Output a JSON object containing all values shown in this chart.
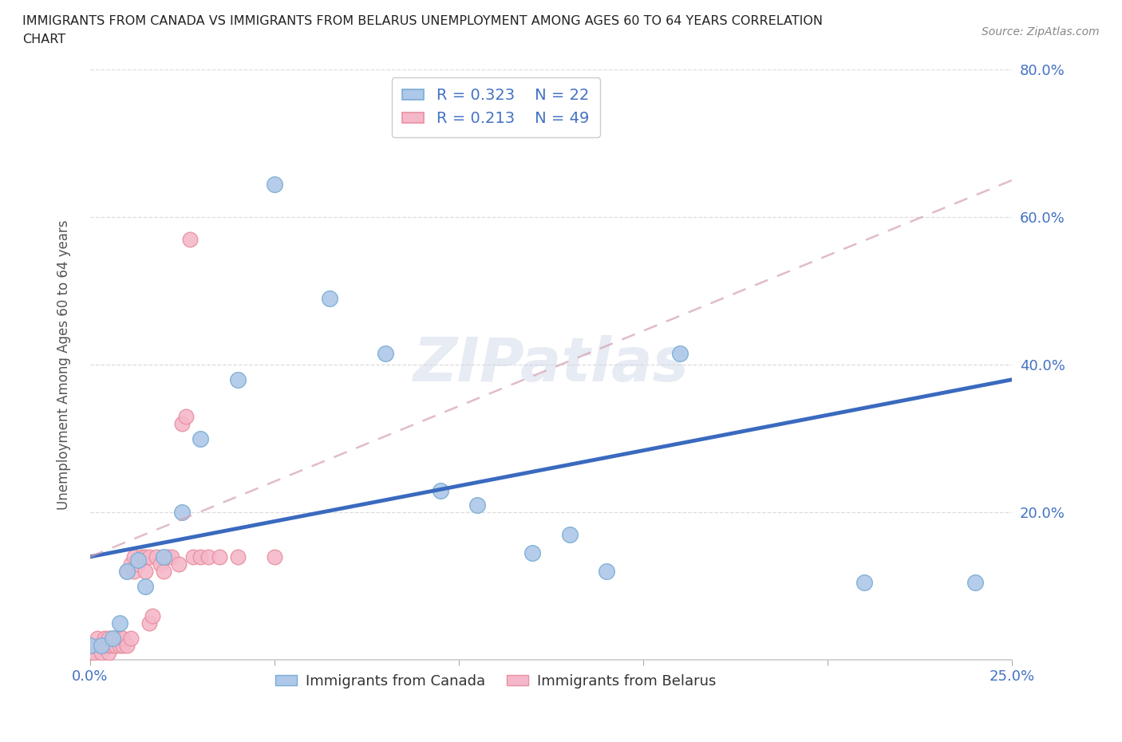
{
  "title_line1": "IMMIGRANTS FROM CANADA VS IMMIGRANTS FROM BELARUS UNEMPLOYMENT AMONG AGES 60 TO 64 YEARS CORRELATION",
  "title_line2": "CHART",
  "source": "Source: ZipAtlas.com",
  "ylabel": "Unemployment Among Ages 60 to 64 years",
  "xmin": 0.0,
  "xmax": 0.25,
  "ymin": 0.0,
  "ymax": 0.8,
  "canada_color": "#adc8e8",
  "canada_edge_color": "#7aadd4",
  "belarus_color": "#f5b8ca",
  "belarus_edge_color": "#e8909f",
  "canada_line_color": "#3a6abf",
  "belarus_line_color": "#e0a0b0",
  "legend_text_color": "#4472c4",
  "watermark": "ZIPatlas",
  "grid_color": "#dddddd",
  "background_color": "#ffffff",
  "canada_x": [
    0.0,
    0.003,
    0.006,
    0.008,
    0.01,
    0.013,
    0.015,
    0.02,
    0.025,
    0.03,
    0.04,
    0.05,
    0.065,
    0.08,
    0.095,
    0.105,
    0.12,
    0.13,
    0.14,
    0.16,
    0.21,
    0.24
  ],
  "canada_y": [
    0.02,
    0.02,
    0.03,
    0.05,
    0.12,
    0.135,
    0.1,
    0.14,
    0.2,
    0.3,
    0.38,
    0.645,
    0.49,
    0.415,
    0.23,
    0.21,
    0.145,
    0.17,
    0.12,
    0.415,
    0.105,
    0.105
  ],
  "belarus_x": [
    0.0,
    0.0,
    0.001,
    0.001,
    0.002,
    0.002,
    0.003,
    0.003,
    0.004,
    0.004,
    0.005,
    0.005,
    0.005,
    0.006,
    0.006,
    0.007,
    0.007,
    0.008,
    0.008,
    0.009,
    0.009,
    0.01,
    0.01,
    0.011,
    0.011,
    0.012,
    0.012,
    0.013,
    0.014,
    0.015,
    0.015,
    0.016,
    0.016,
    0.017,
    0.018,
    0.019,
    0.02,
    0.021,
    0.022,
    0.024,
    0.025,
    0.026,
    0.027,
    0.028,
    0.03,
    0.032,
    0.035,
    0.04,
    0.05
  ],
  "belarus_y": [
    0.01,
    0.02,
    0.01,
    0.02,
    0.02,
    0.03,
    0.01,
    0.02,
    0.02,
    0.03,
    0.01,
    0.02,
    0.03,
    0.02,
    0.03,
    0.02,
    0.03,
    0.02,
    0.03,
    0.02,
    0.03,
    0.02,
    0.12,
    0.13,
    0.03,
    0.12,
    0.14,
    0.13,
    0.14,
    0.12,
    0.14,
    0.05,
    0.14,
    0.06,
    0.14,
    0.13,
    0.12,
    0.14,
    0.14,
    0.13,
    0.32,
    0.33,
    0.57,
    0.14,
    0.14,
    0.14,
    0.14,
    0.14,
    0.14
  ],
  "canada_line_x0": 0.0,
  "canada_line_y0": 0.14,
  "canada_line_x1": 0.25,
  "canada_line_y1": 0.38,
  "belarus_line_x0": 0.0,
  "belarus_line_y0": 0.14,
  "belarus_line_x1": 0.25,
  "belarus_line_y1": 0.65
}
